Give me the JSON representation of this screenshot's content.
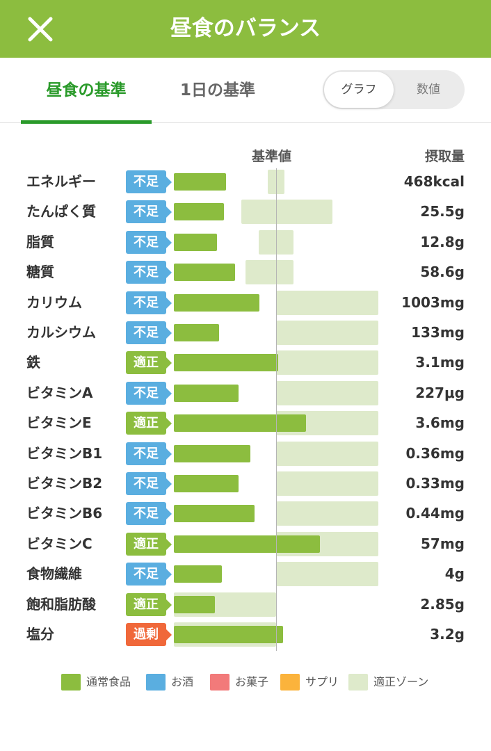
{
  "header": {
    "title": "昼食のバランス",
    "close_icon": "close-icon"
  },
  "tabs": [
    {
      "label": "昼食の基準",
      "active": true
    },
    {
      "label": "1日の基準",
      "active": false
    }
  ],
  "view_toggle": {
    "options": [
      "グラフ",
      "数値"
    ],
    "selected": "グラフ"
  },
  "columns": {
    "standard": "基準値",
    "intake": "摂取量"
  },
  "colors": {
    "normal_food": "#8cbd3f",
    "alcohol": "#5aaee0",
    "sweets": "#f27a7a",
    "supplement": "#fbb33c",
    "proper_zone": "#deeacb",
    "status_deficient": "#5aaee0",
    "status_proper": "#8cbd3f",
    "status_excess": "#f0683a"
  },
  "chart_data": {
    "type": "bar",
    "reference_label": "基準値",
    "value_label": "摂取量",
    "series": [
      {
        "name": "通常食品"
      }
    ],
    "nutrients": [
      {
        "name": "エネルギー",
        "status": "不足",
        "status_key": "deficient",
        "intake": "468kcal",
        "ratio": 0.51,
        "zone": [
          0.92,
          1.08
        ]
      },
      {
        "name": "たんぱく質",
        "status": "不足",
        "status_key": "deficient",
        "intake": "25.5g",
        "ratio": 0.49,
        "zone": [
          0.66,
          1.55
        ]
      },
      {
        "name": "脂質",
        "status": "不足",
        "status_key": "deficient",
        "intake": "12.8g",
        "ratio": 0.42,
        "zone": [
          0.83,
          1.17
        ]
      },
      {
        "name": "糖質",
        "status": "不足",
        "status_key": "deficient",
        "intake": "58.6g",
        "ratio": 0.6,
        "zone": [
          0.7,
          1.17
        ]
      },
      {
        "name": "カリウム",
        "status": "不足",
        "status_key": "deficient",
        "intake": "1003mg",
        "ratio": 0.84,
        "zone": [
          1.0,
          2.0
        ]
      },
      {
        "name": "カルシウム",
        "status": "不足",
        "status_key": "deficient",
        "intake": "133mg",
        "ratio": 0.44,
        "zone": [
          1.0,
          2.0
        ]
      },
      {
        "name": "鉄",
        "status": "適正",
        "status_key": "proper",
        "intake": "3.1mg",
        "ratio": 1.02,
        "zone": [
          1.0,
          2.0
        ]
      },
      {
        "name": "ビタミンA",
        "status": "不足",
        "status_key": "deficient",
        "intake": "227μg",
        "ratio": 0.63,
        "zone": [
          1.0,
          2.0
        ]
      },
      {
        "name": "ビタミンE",
        "status": "適正",
        "status_key": "proper",
        "intake": "3.6mg",
        "ratio": 1.29,
        "zone": [
          1.0,
          2.0
        ]
      },
      {
        "name": "ビタミンB1",
        "status": "不足",
        "status_key": "deficient",
        "intake": "0.36mg",
        "ratio": 0.75,
        "zone": [
          1.0,
          2.0
        ]
      },
      {
        "name": "ビタミンB2",
        "status": "不足",
        "status_key": "deficient",
        "intake": "0.33mg",
        "ratio": 0.63,
        "zone": [
          1.0,
          2.0
        ]
      },
      {
        "name": "ビタミンB6",
        "status": "不足",
        "status_key": "deficient",
        "intake": "0.44mg",
        "ratio": 0.79,
        "zone": [
          1.0,
          2.0
        ]
      },
      {
        "name": "ビタミンC",
        "status": "適正",
        "status_key": "proper",
        "intake": "57mg",
        "ratio": 1.43,
        "zone": [
          1.0,
          2.0
        ]
      },
      {
        "name": "食物繊維",
        "status": "不足",
        "status_key": "deficient",
        "intake": "4g",
        "ratio": 0.47,
        "zone": [
          1.0,
          2.0
        ]
      },
      {
        "name": "飽和脂肪酸",
        "status": "適正",
        "status_key": "proper",
        "intake": "2.85g",
        "ratio": 0.4,
        "zone": [
          0.0,
          1.0
        ]
      },
      {
        "name": "塩分",
        "status": "過剰",
        "status_key": "excess",
        "intake": "3.2g",
        "ratio": 1.07,
        "zone": [
          0.0,
          1.0
        ]
      }
    ]
  },
  "legend": [
    {
      "label": "通常食品",
      "color": "#8cbd3f"
    },
    {
      "label": "お酒",
      "color": "#5aaee0"
    },
    {
      "label": "お菓子",
      "color": "#f27a7a"
    },
    {
      "label": "サプリ",
      "color": "#fbb33c"
    },
    {
      "label": "適正ゾーン",
      "color": "#deeacb"
    }
  ]
}
